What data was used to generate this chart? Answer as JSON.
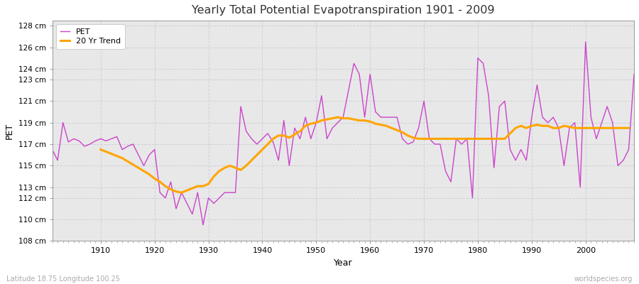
{
  "title": "Yearly Total Potential Evapotranspiration 1901 - 2009",
  "xlabel": "Year",
  "ylabel": "PET",
  "subtitle": "Latitude 18.75 Longitude 100.25",
  "watermark": "worldspecies.org",
  "pet_color": "#cc44cc",
  "trend_color": "#FFA500",
  "bg_outer": "#ffffff",
  "bg_plot": "#e8e8e8",
  "grid_color": "#d0d0d8",
  "ylim": [
    108,
    128.5
  ],
  "ytick_values": [
    108,
    110,
    112,
    113,
    115,
    117,
    119,
    121,
    123,
    124,
    126,
    128
  ],
  "ytick_labels": [
    "108 cm",
    "110 cm",
    "112 cm",
    "113 cm",
    "115 cm",
    "117 cm",
    "119 cm",
    "121 cm",
    "123 cm",
    "124 cm",
    "126 cm",
    "128 cm"
  ],
  "xlim": [
    1901,
    2009
  ],
  "xticks": [
    1910,
    1920,
    1930,
    1940,
    1950,
    1960,
    1970,
    1980,
    1990,
    2000
  ],
  "years": [
    1901,
    1902,
    1903,
    1904,
    1905,
    1906,
    1907,
    1908,
    1909,
    1910,
    1911,
    1912,
    1913,
    1914,
    1915,
    1916,
    1917,
    1918,
    1919,
    1920,
    1921,
    1922,
    1923,
    1924,
    1925,
    1926,
    1927,
    1928,
    1929,
    1930,
    1931,
    1932,
    1933,
    1934,
    1935,
    1936,
    1937,
    1938,
    1939,
    1940,
    1941,
    1942,
    1943,
    1944,
    1945,
    1946,
    1947,
    1948,
    1949,
    1950,
    1951,
    1952,
    1953,
    1954,
    1955,
    1956,
    1957,
    1958,
    1959,
    1960,
    1961,
    1962,
    1963,
    1964,
    1965,
    1966,
    1967,
    1968,
    1969,
    1970,
    1971,
    1972,
    1973,
    1974,
    1975,
    1976,
    1977,
    1978,
    1979,
    1980,
    1981,
    1982,
    1983,
    1984,
    1985,
    1986,
    1987,
    1988,
    1989,
    1990,
    1991,
    1992,
    1993,
    1994,
    1995,
    1996,
    1997,
    1998,
    1999,
    2000,
    2001,
    2002,
    2003,
    2004,
    2005,
    2006,
    2007,
    2008,
    2009
  ],
  "pet_values": [
    116.5,
    115.5,
    119.0,
    117.2,
    117.5,
    117.3,
    116.8,
    117.0,
    117.3,
    117.5,
    117.3,
    117.5,
    117.7,
    116.5,
    116.8,
    117.0,
    116.0,
    115.0,
    116.0,
    116.5,
    112.5,
    112.0,
    113.5,
    111.0,
    112.5,
    111.5,
    110.5,
    112.5,
    109.5,
    112.0,
    111.5,
    112.0,
    112.5,
    112.5,
    112.5,
    120.5,
    118.2,
    117.5,
    117.0,
    117.5,
    118.0,
    117.2,
    115.5,
    119.2,
    115.0,
    118.5,
    117.5,
    119.5,
    117.5,
    119.0,
    121.5,
    117.5,
    118.5,
    119.0,
    119.5,
    122.0,
    124.5,
    123.5,
    119.5,
    123.5,
    120.0,
    119.5,
    119.5,
    119.5,
    119.5,
    117.5,
    117.0,
    117.2,
    118.5,
    121.0,
    117.5,
    117.0,
    117.0,
    114.5,
    113.5,
    117.5,
    117.0,
    117.5,
    112.0,
    125.0,
    124.5,
    121.5,
    114.8,
    120.5,
    121.0,
    116.5,
    115.5,
    116.5,
    115.5,
    119.5,
    122.5,
    119.5,
    119.0,
    119.5,
    118.5,
    115.0,
    118.5,
    119.0,
    113.0,
    126.5,
    119.5,
    117.5,
    119.0,
    120.5,
    119.0,
    115.0,
    115.5,
    116.5,
    123.5
  ],
  "trend_values": [
    null,
    null,
    null,
    null,
    null,
    null,
    null,
    null,
    null,
    116.5,
    116.3,
    116.1,
    115.9,
    115.7,
    115.4,
    115.1,
    114.8,
    114.5,
    114.2,
    113.8,
    113.5,
    113.1,
    112.8,
    112.6,
    112.5,
    112.7,
    112.9,
    113.1,
    113.1,
    113.3,
    114.0,
    114.5,
    114.8,
    115.0,
    114.8,
    114.6,
    115.0,
    115.5,
    116.0,
    116.5,
    117.0,
    117.5,
    117.8,
    117.8,
    117.6,
    117.9,
    118.2,
    118.7,
    118.9,
    119.0,
    119.2,
    119.3,
    119.4,
    119.5,
    119.4,
    119.4,
    119.3,
    119.2,
    119.2,
    119.1,
    118.9,
    118.8,
    118.7,
    118.5,
    118.3,
    118.1,
    117.8,
    117.6,
    117.5,
    117.5,
    117.5,
    117.5,
    117.5,
    117.5,
    117.5,
    117.5,
    117.5,
    117.5,
    117.5,
    117.5,
    117.5,
    117.5,
    117.5,
    117.5,
    117.5,
    118.0,
    118.5,
    118.7,
    118.5,
    118.7,
    118.8,
    118.7,
    118.7,
    118.5,
    118.5,
    118.7,
    118.6,
    118.5,
    118.5,
    118.5,
    118.5,
    118.5,
    118.5,
    118.5,
    118.5,
    118.5,
    118.5,
    118.5
  ]
}
